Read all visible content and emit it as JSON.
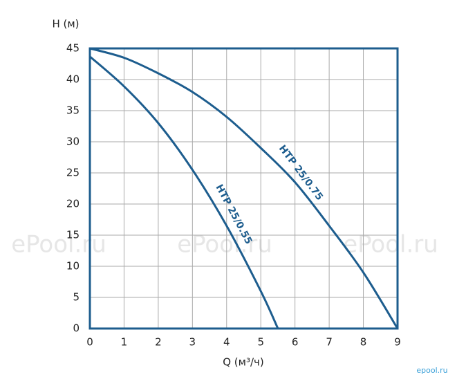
{
  "chart_data": {
    "type": "line",
    "y_label": "H (м)",
    "x_label": "Q (м³/ч)",
    "xlim": [
      0,
      9
    ],
    "ylim": [
      0,
      45
    ],
    "xticks": [
      0,
      1,
      2,
      3,
      4,
      5,
      6,
      7,
      8,
      9
    ],
    "yticks": [
      0,
      5,
      10,
      15,
      20,
      25,
      30,
      35,
      40,
      45
    ],
    "grid": true,
    "series": [
      {
        "name": "НТР 25/0.55",
        "color": "#1d5d8e",
        "x": [
          0,
          1,
          2,
          3,
          4,
          5,
          5.5
        ],
        "values": [
          43.7,
          38.9,
          33,
          25.5,
          16.5,
          6,
          0
        ]
      },
      {
        "name": "НТР 25/0.75",
        "color": "#1d5d8e",
        "x": [
          0,
          1,
          2,
          3,
          4,
          5,
          6,
          7,
          8,
          9
        ],
        "values": [
          45,
          43.5,
          41,
          38,
          34,
          29,
          23.5,
          16.5,
          9,
          0
        ]
      }
    ],
    "watermarks": [
      "ePool.ru",
      "ePool.ru",
      "ePool.ru",
      "epool.ru"
    ]
  }
}
